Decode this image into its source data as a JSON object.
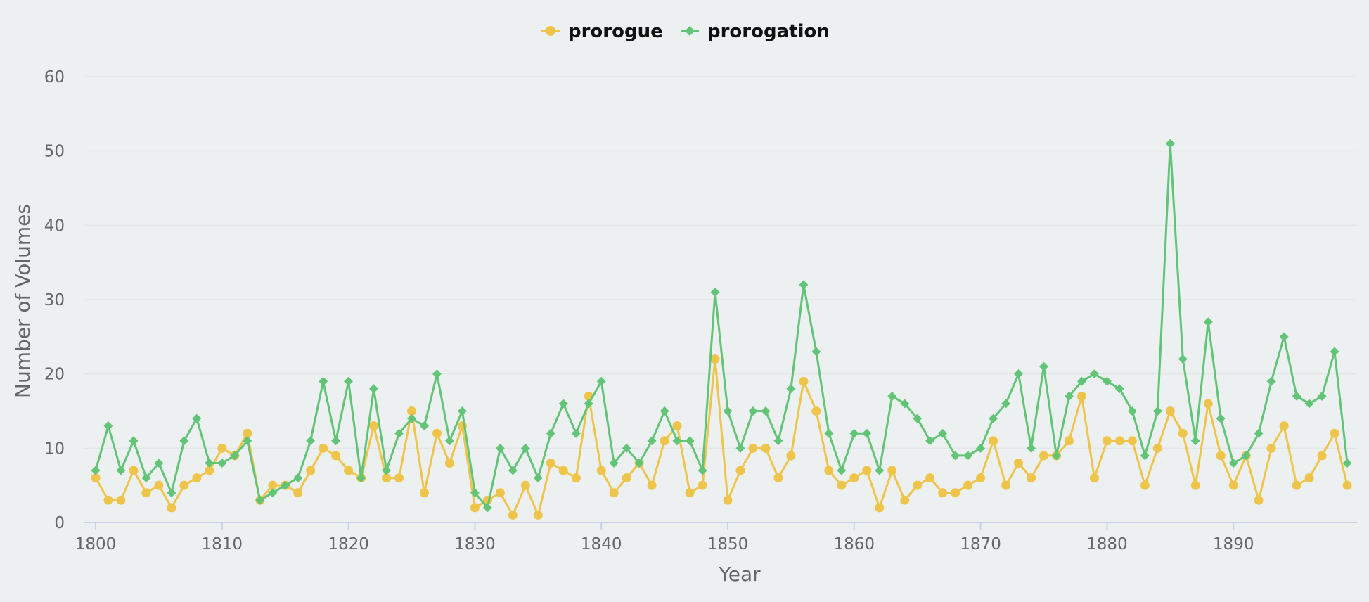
{
  "chart_data": {
    "type": "line",
    "title": "",
    "xlabel": "Year",
    "ylabel": "Number of Volumes",
    "xlim": [
      1800,
      1899
    ],
    "ylim": [
      0,
      60
    ],
    "yticks": [
      0,
      10,
      20,
      30,
      40,
      50,
      60
    ],
    "xticks": [
      1800,
      1810,
      1820,
      1830,
      1840,
      1850,
      1860,
      1870,
      1880,
      1890
    ],
    "legend_position": "top-center",
    "grid": true,
    "x_start": 1800,
    "series": [
      {
        "name": "prorogue",
        "color": "#eec44a",
        "marker": "circle",
        "values": [
          6,
          3,
          3,
          7,
          4,
          5,
          2,
          5,
          6,
          7,
          10,
          9,
          12,
          3,
          5,
          5,
          4,
          7,
          10,
          9,
          7,
          6,
          13,
          6,
          6,
          15,
          4,
          12,
          8,
          13,
          2,
          3,
          4,
          1,
          5,
          1,
          8,
          7,
          6,
          17,
          7,
          4,
          6,
          8,
          5,
          11,
          13,
          4,
          5,
          22,
          3,
          7,
          10,
          10,
          6,
          9,
          19,
          15,
          7,
          5,
          6,
          7,
          2,
          7,
          3,
          5,
          6,
          4,
          4,
          5,
          6,
          11,
          5,
          8,
          6,
          9,
          9,
          11,
          17,
          6,
          11,
          11,
          11,
          5,
          10,
          15,
          12,
          5,
          16,
          9,
          5,
          9,
          3,
          10,
          13,
          5,
          6,
          9,
          12,
          5
        ]
      },
      {
        "name": "prorogation",
        "color": "#62c476",
        "marker": "diamond",
        "values": [
          7,
          13,
          7,
          11,
          6,
          8,
          4,
          11,
          14,
          8,
          8,
          9,
          11,
          3,
          4,
          5,
          6,
          11,
          19,
          11,
          19,
          6,
          18,
          7,
          12,
          14,
          13,
          20,
          11,
          15,
          4,
          2,
          10,
          7,
          10,
          6,
          12,
          16,
          12,
          16,
          19,
          8,
          10,
          8,
          11,
          15,
          11,
          11,
          7,
          31,
          15,
          10,
          15,
          15,
          11,
          18,
          32,
          23,
          12,
          7,
          12,
          12,
          7,
          17,
          16,
          14,
          11,
          12,
          9,
          9,
          10,
          14,
          16,
          20,
          10,
          21,
          9,
          17,
          19,
          20,
          19,
          18,
          15,
          9,
          15,
          51,
          22,
          11,
          27,
          14,
          8,
          9,
          12,
          19,
          25,
          17,
          16,
          17,
          23,
          8
        ]
      }
    ]
  }
}
